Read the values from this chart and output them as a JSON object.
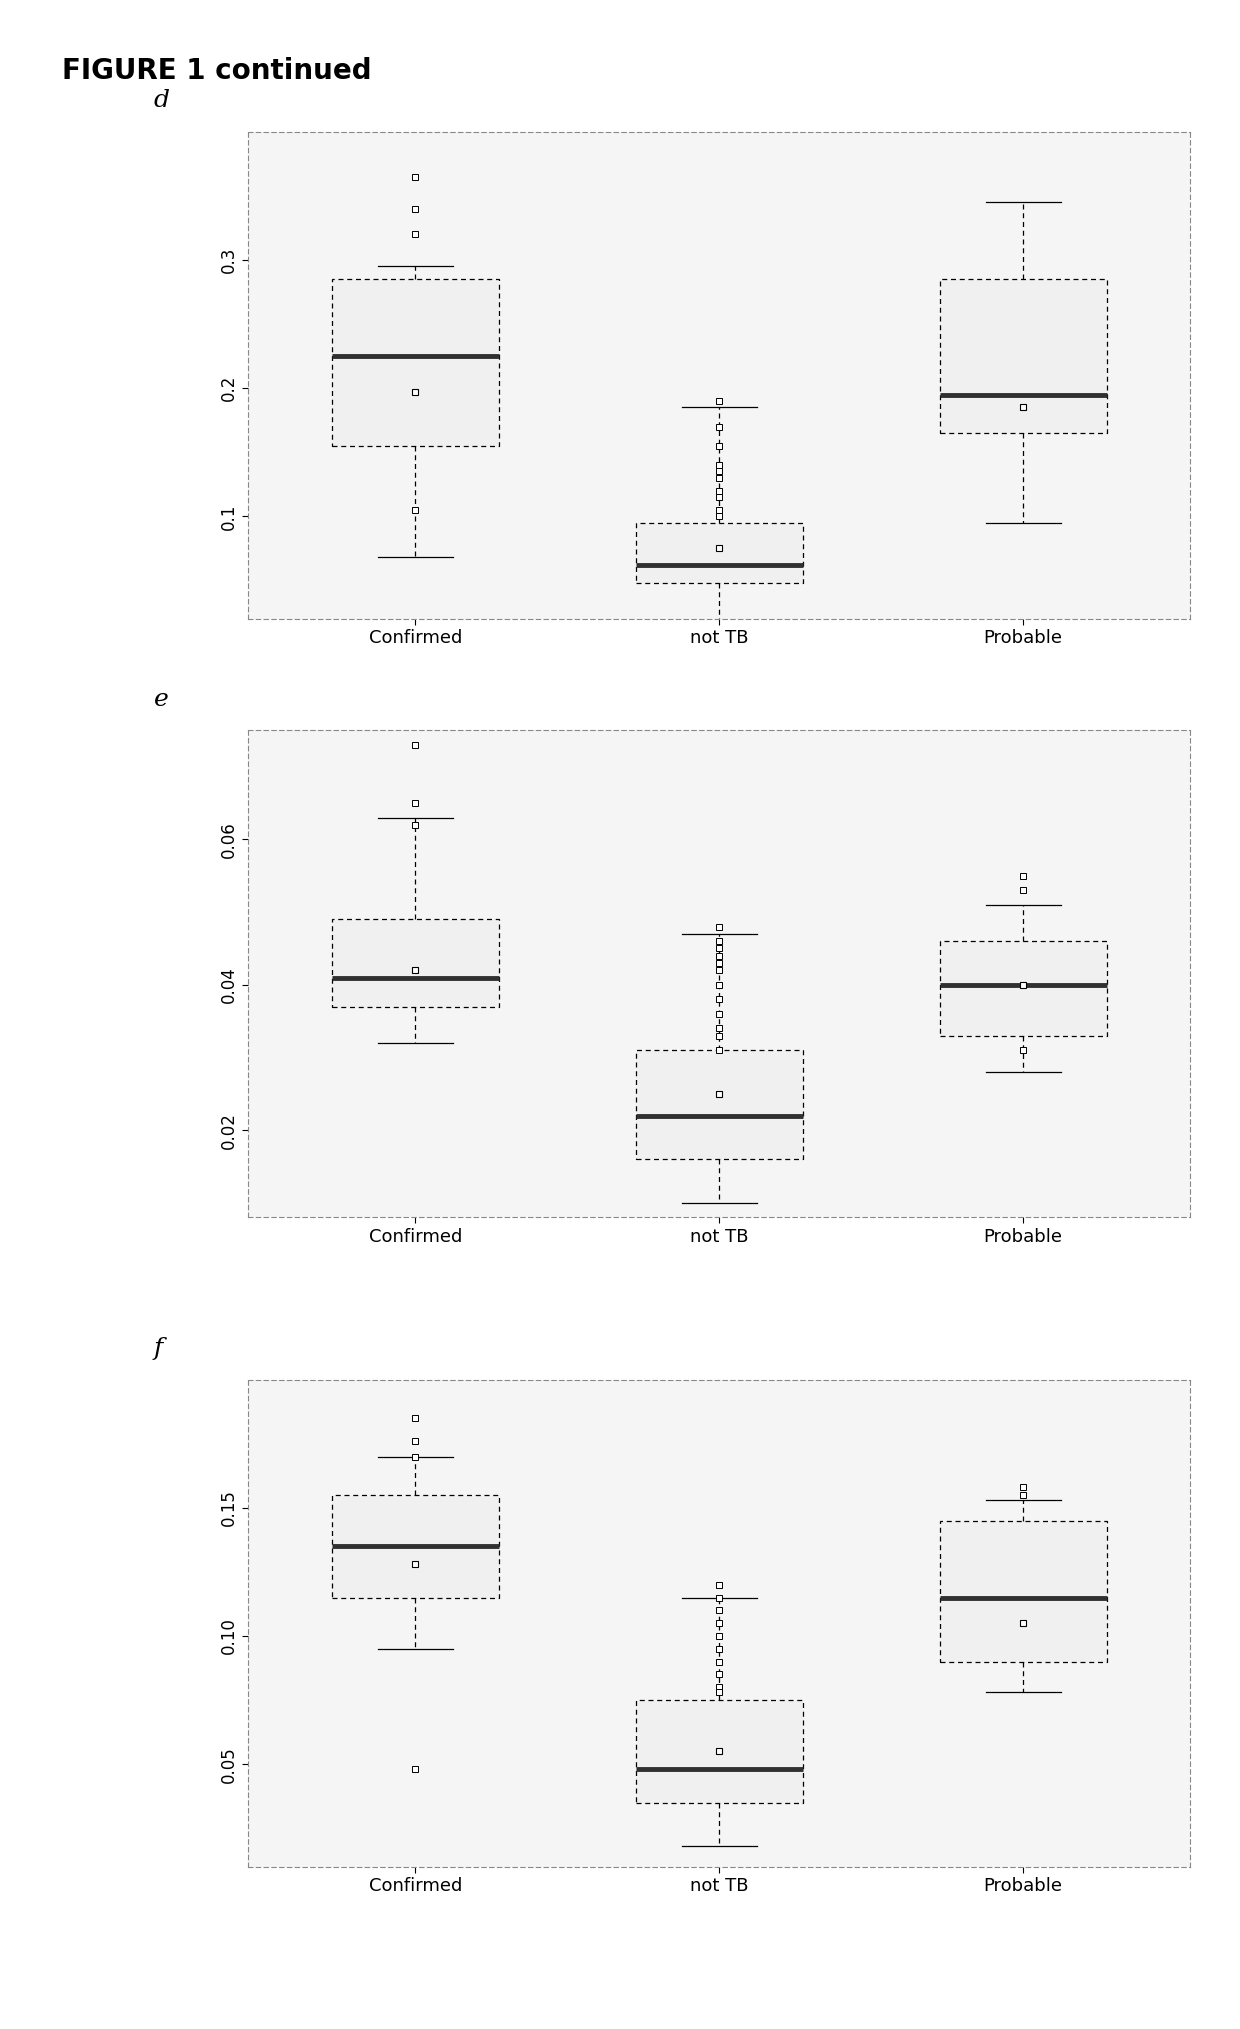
{
  "title": "FIGURE 1 continued",
  "categories": [
    "Confirmed",
    "not TB",
    "Probable"
  ],
  "panel_d": {
    "label": "d",
    "ylim": [
      0.02,
      0.4
    ],
    "yticks": [
      0.1,
      0.2,
      0.3
    ],
    "yticklabels": [
      "0.1",
      "0.2",
      "0.3"
    ],
    "boxes": {
      "Confirmed": {
        "q1": 0.155,
        "median": 0.225,
        "q3": 0.285,
        "whislo": 0.068,
        "whishi": 0.295,
        "mean": 0.197,
        "fliers_hi": [
          0.365,
          0.34,
          0.32
        ],
        "fliers_lo": [
          0.105
        ]
      },
      "not TB": {
        "q1": 0.048,
        "median": 0.062,
        "q3": 0.095,
        "whislo": 0.018,
        "whishi": 0.185,
        "mean": 0.075,
        "fliers_hi": [
          0.19,
          0.17,
          0.155,
          0.14,
          0.135,
          0.13,
          0.12,
          0.115,
          0.105,
          0.1
        ],
        "fliers_lo": []
      },
      "Probable": {
        "q1": 0.165,
        "median": 0.195,
        "q3": 0.285,
        "whislo": 0.095,
        "whishi": 0.345,
        "mean": 0.185,
        "fliers_hi": [],
        "fliers_lo": []
      }
    }
  },
  "panel_e": {
    "label": "e",
    "ylim": [
      0.008,
      0.075
    ],
    "yticks": [
      0.02,
      0.04,
      0.06
    ],
    "yticklabels": [
      "0.02",
      "0.04",
      "0.06"
    ],
    "boxes": {
      "Confirmed": {
        "q1": 0.037,
        "median": 0.041,
        "q3": 0.049,
        "whislo": 0.032,
        "whishi": 0.063,
        "mean": 0.042,
        "fliers_hi": [
          0.073,
          0.065,
          0.062
        ],
        "fliers_lo": []
      },
      "not TB": {
        "q1": 0.016,
        "median": 0.022,
        "q3": 0.031,
        "whislo": 0.01,
        "whishi": 0.047,
        "mean": 0.025,
        "fliers_hi": [
          0.048,
          0.046,
          0.045,
          0.044,
          0.043,
          0.042,
          0.04,
          0.038,
          0.036,
          0.034,
          0.033,
          0.031
        ],
        "fliers_lo": []
      },
      "Probable": {
        "q1": 0.033,
        "median": 0.04,
        "q3": 0.046,
        "whislo": 0.028,
        "whishi": 0.051,
        "mean": 0.04,
        "fliers_hi": [
          0.055,
          0.053
        ],
        "fliers_lo": [
          0.031
        ]
      }
    }
  },
  "panel_f": {
    "label": "f",
    "ylim": [
      0.01,
      0.2
    ],
    "yticks": [
      0.05,
      0.1,
      0.15
    ],
    "yticklabels": [
      "0.05",
      "0.10",
      "0.15"
    ],
    "boxes": {
      "Confirmed": {
        "q1": 0.115,
        "median": 0.135,
        "q3": 0.155,
        "whislo": 0.095,
        "whishi": 0.17,
        "mean": 0.128,
        "fliers_hi": [
          0.185,
          0.176,
          0.17
        ],
        "fliers_lo": [
          0.048
        ]
      },
      "not TB": {
        "q1": 0.035,
        "median": 0.048,
        "q3": 0.075,
        "whislo": 0.018,
        "whishi": 0.115,
        "mean": 0.055,
        "fliers_hi": [
          0.12,
          0.115,
          0.11,
          0.105,
          0.1,
          0.095,
          0.09,
          0.085,
          0.08,
          0.078
        ],
        "fliers_lo": []
      },
      "Probable": {
        "q1": 0.09,
        "median": 0.115,
        "q3": 0.145,
        "whislo": 0.078,
        "whishi": 0.153,
        "mean": 0.105,
        "fliers_hi": [
          0.158,
          0.155
        ],
        "fliers_lo": []
      }
    }
  },
  "box_facecolor": "#f0f0f0",
  "median_color": "#303030",
  "flier_color": "#ffffff",
  "flier_edge_color": "#000000",
  "mean_color": "#ffffff",
  "mean_edge_color": "#000000",
  "background_color": "#ffffff",
  "plot_bg_color": "#f5f5f5"
}
